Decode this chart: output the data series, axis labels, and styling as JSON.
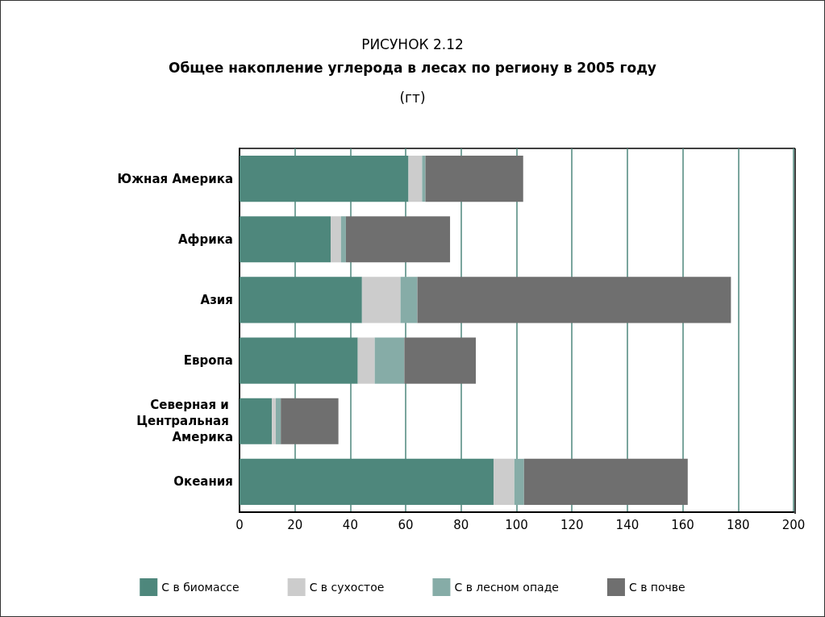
{
  "chart_data": {
    "type": "bar",
    "orientation": "horizontal",
    "stacked": true,
    "title": "РИСУНОК 2.12",
    "subtitle": "Общее накопление углерода в лесах по региону в 2005 году",
    "annotations": [
      "(гт)"
    ],
    "categories": [
      "Южная Америка",
      "Африка",
      "Азия",
      "Европа",
      "Северная и Центральная Америка",
      "Океания"
    ],
    "series": [
      {
        "name": "С в биомассе",
        "color": "#4e877c",
        "values": [
          61.0,
          32.9,
          44.2,
          42.7,
          11.7,
          91.7
        ]
      },
      {
        "name": "С в сухостое",
        "color": "#cccccc",
        "values": [
          4.9,
          3.7,
          13.9,
          6.1,
          1.4,
          7.5
        ]
      },
      {
        "name": "С в лесном опаде",
        "color": "#86aca7",
        "values": [
          1.2,
          1.8,
          6.1,
          10.7,
          1.8,
          3.5
        ]
      },
      {
        "name": "С в почве",
        "color": "#6f6f6f",
        "values": [
          35.3,
          37.6,
          113.2,
          25.8,
          20.8,
          59.1
        ]
      }
    ],
    "xlim": [
      0,
      200
    ],
    "xticks": [
      0,
      20,
      40,
      60,
      80,
      100,
      120,
      140,
      160,
      180,
      200
    ],
    "grid": "x",
    "legend": "bottom"
  }
}
